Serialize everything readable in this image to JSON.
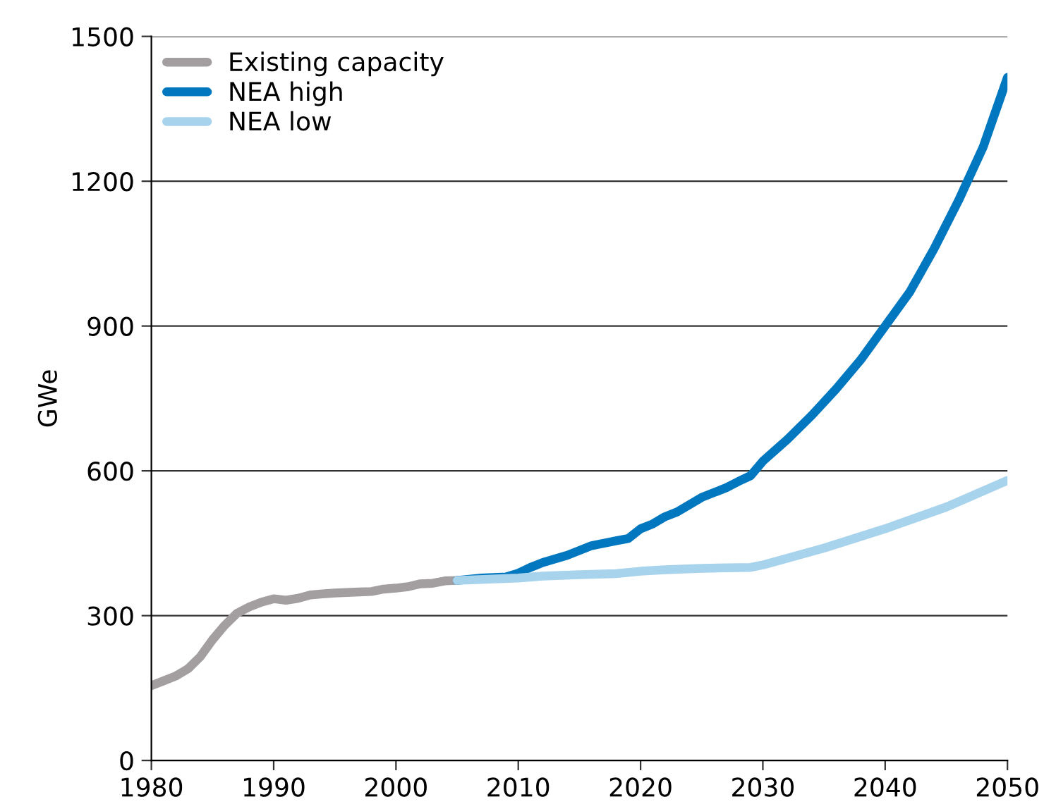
{
  "chart_data": {
    "type": "line",
    "ylabel": "GWe",
    "xlim": [
      1980,
      2050
    ],
    "xticks": [
      1980,
      1990,
      2000,
      2010,
      2020,
      2030,
      2040,
      2050
    ],
    "ylim": [
      0,
      1500
    ],
    "yticks": [
      0,
      300,
      600,
      900,
      1200,
      1500
    ],
    "grid": "y",
    "legend": "top left",
    "line_style": "solid",
    "marker": "none",
    "series": [
      {
        "name": "Existing capacity",
        "color": "#a39e9f",
        "x": [
          1980,
          1981,
          1982,
          1983,
          1984,
          1985,
          1986,
          1987,
          1988,
          1989,
          1990,
          1991,
          1992,
          1993,
          1994,
          1995,
          1996,
          1997,
          1998,
          1999,
          2000,
          2001,
          2002,
          2003,
          2004,
          2005
        ],
        "values": [
          155,
          165,
          175,
          190,
          215,
          250,
          280,
          305,
          318,
          328,
          335,
          332,
          336,
          343,
          345,
          347,
          348,
          349,
          350,
          355,
          357,
          360,
          366,
          367,
          372,
          373
        ]
      },
      {
        "name": "NEA high",
        "color": "#0077bf",
        "x": [
          2005,
          2007,
          2009,
          2010,
          2011,
          2012,
          2014,
          2016,
          2018,
          2019,
          2020,
          2021,
          2022,
          2023,
          2024,
          2025,
          2027,
          2028,
          2029,
          2030,
          2032,
          2034,
          2036,
          2038,
          2040,
          2042,
          2044,
          2046,
          2048,
          2050
        ],
        "values": [
          373,
          378,
          380,
          388,
          400,
          410,
          425,
          445,
          455,
          460,
          480,
          490,
          505,
          515,
          530,
          545,
          565,
          578,
          590,
          620,
          665,
          715,
          770,
          830,
          900,
          970,
          1060,
          1160,
          1270,
          1415
        ]
      },
      {
        "name": "NEA low",
        "color": "#a7d3ec",
        "x": [
          2005,
          2010,
          2012,
          2015,
          2018,
          2020,
          2022,
          2025,
          2029,
          2030,
          2035,
          2040,
          2045,
          2050
        ],
        "values": [
          373,
          378,
          382,
          385,
          387,
          392,
          395,
          398,
          400,
          405,
          440,
          480,
          525,
          580
        ]
      }
    ]
  }
}
